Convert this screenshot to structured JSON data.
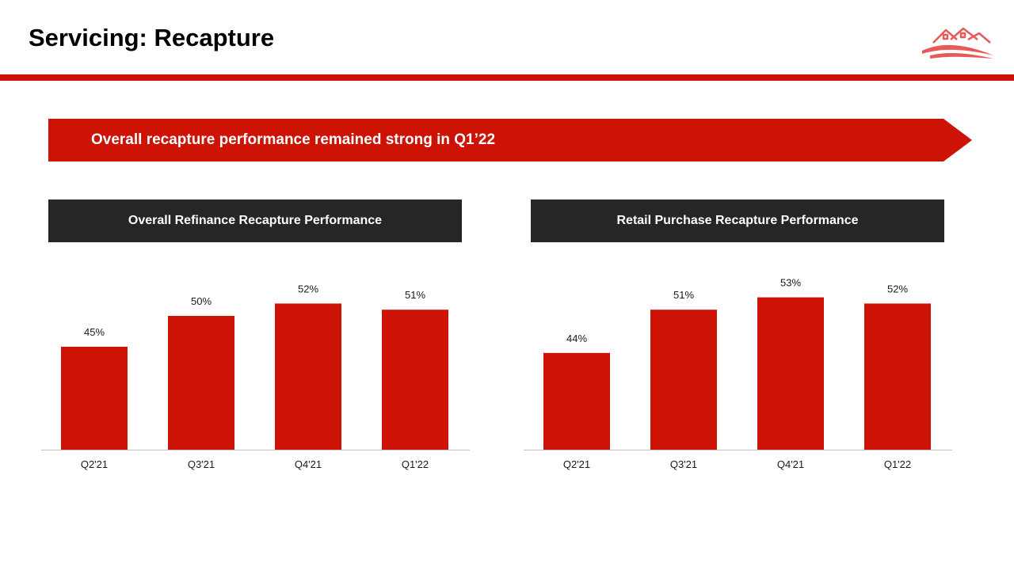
{
  "page": {
    "title": "Servicing: Recapture"
  },
  "logo": {
    "icon": "house-roof-logo-icon"
  },
  "colors": {
    "accent": "#cc1306",
    "header_dark": "#262626",
    "axis": "#bfbfbf"
  },
  "banner": {
    "text": "Overall recapture performance remained strong in Q1’22"
  },
  "chart_data": [
    {
      "type": "bar",
      "title": "Overall Refinance Recapture Performance",
      "categories": [
        "Q2'21",
        "Q3'21",
        "Q4'21",
        "Q1'22"
      ],
      "values": [
        45,
        50,
        52,
        51
      ],
      "labels": [
        "45%",
        "50%",
        "52%",
        "51%"
      ],
      "ylim": [
        0,
        60
      ],
      "xlabel": "",
      "ylabel": "",
      "grid": false,
      "legend": "none"
    },
    {
      "type": "bar",
      "title": "Retail Purchase Recapture Performance",
      "categories": [
        "Q2'21",
        "Q3'21",
        "Q4'21",
        "Q1'22"
      ],
      "values": [
        44,
        51,
        53,
        52
      ],
      "labels": [
        "44%",
        "51%",
        "53%",
        "52%"
      ],
      "ylim": [
        0,
        60
      ],
      "xlabel": "",
      "ylabel": "",
      "grid": false,
      "legend": "none"
    }
  ]
}
